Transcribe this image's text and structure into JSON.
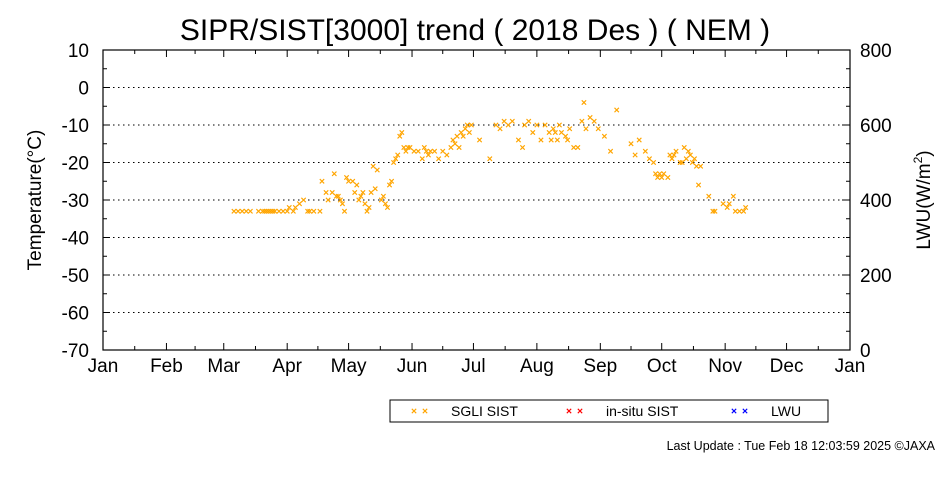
{
  "chart_data": {
    "type": "scatter",
    "title": "SIPR/SIST[3000] trend ( 2018 Des ) ( NEM )",
    "ylabel": "Temperature(°C)",
    "y2label": "LWU(W/m²)",
    "y2label_main": "LWU(W/m",
    "y2label_sup": "2",
    "y2label_end": ")",
    "xlabel": "",
    "x_ticks": [
      "Jan",
      "Feb",
      "Mar",
      "Apr",
      "May",
      "Jun",
      "Jul",
      "Aug",
      "Sep",
      "Oct",
      "Nov",
      "Dec",
      "Jan"
    ],
    "ylim": [
      -70,
      10
    ],
    "y_ticks": [
      "10",
      "0",
      "-10",
      "-20",
      "-30",
      "-40",
      "-50",
      "-60",
      "-70"
    ],
    "y2lim": [
      0,
      800
    ],
    "y2_ticks": [
      "800",
      "600",
      "400",
      "200",
      "0"
    ],
    "grid": "horizontal dotted",
    "legend_position": "bottom",
    "series": [
      {
        "name": "SGLI SIST",
        "color": "#FFA500",
        "points": [
          [
            64,
            -33
          ],
          [
            66,
            -33
          ],
          [
            68,
            -33
          ],
          [
            70,
            -33
          ],
          [
            72,
            -33
          ],
          [
            76,
            -33
          ],
          [
            78,
            -33
          ],
          [
            79,
            -33
          ],
          [
            80,
            -33
          ],
          [
            81,
            -33
          ],
          [
            82,
            -33
          ],
          [
            83,
            -33
          ],
          [
            84,
            -33
          ],
          [
            86,
            -33
          ],
          [
            88,
            -33
          ],
          [
            90,
            -33
          ],
          [
            91,
            -32
          ],
          [
            93,
            -33
          ],
          [
            94,
            -32
          ],
          [
            96,
            -31
          ],
          [
            98,
            -30
          ],
          [
            100,
            -33
          ],
          [
            101,
            -33
          ],
          [
            103,
            -33
          ],
          [
            106,
            -33
          ],
          [
            107,
            -25
          ],
          [
            109,
            -28
          ],
          [
            110,
            -30
          ],
          [
            112,
            -28
          ],
          [
            113,
            -23
          ],
          [
            114,
            -29
          ],
          [
            115,
            -29
          ],
          [
            116,
            -30
          ],
          [
            117,
            -31
          ],
          [
            118,
            -33
          ],
          [
            119,
            -24
          ],
          [
            120,
            -25
          ],
          [
            122,
            -25
          ],
          [
            123,
            -28
          ],
          [
            124,
            -26
          ],
          [
            125,
            -30
          ],
          [
            126,
            -29
          ],
          [
            127,
            -28
          ],
          [
            128,
            -31
          ],
          [
            129,
            -33
          ],
          [
            130,
            -32
          ],
          [
            131,
            -28
          ],
          [
            132,
            -21
          ],
          [
            133,
            -27
          ],
          [
            134,
            -22
          ],
          [
            136,
            -30
          ],
          [
            137,
            -29
          ],
          [
            138,
            -31
          ],
          [
            139,
            -32
          ],
          [
            140,
            -26
          ],
          [
            141,
            -25
          ],
          [
            142,
            -20
          ],
          [
            143,
            -19
          ],
          [
            144,
            -18
          ],
          [
            145,
            -13
          ],
          [
            146,
            -12
          ],
          [
            147,
            -16
          ],
          [
            148,
            -17
          ],
          [
            149,
            -16
          ],
          [
            150,
            -16
          ],
          [
            152,
            -17
          ],
          [
            154,
            -17
          ],
          [
            156,
            -19
          ],
          [
            157,
            -16
          ],
          [
            158,
            -17
          ],
          [
            159,
            -18
          ],
          [
            160,
            -17
          ],
          [
            162,
            -17
          ],
          [
            164,
            -19
          ],
          [
            166,
            -17
          ],
          [
            168,
            -18
          ],
          [
            170,
            -16
          ],
          [
            171,
            -14
          ],
          [
            172,
            -15
          ],
          [
            173,
            -13
          ],
          [
            174,
            -16
          ],
          [
            175,
            -12
          ],
          [
            176,
            -13
          ],
          [
            177,
            -11
          ],
          [
            178,
            -10
          ],
          [
            179,
            -12
          ],
          [
            180,
            -10
          ],
          [
            184,
            -14
          ],
          [
            189,
            -19
          ],
          [
            192,
            -10
          ],
          [
            194,
            -11
          ],
          [
            196,
            -9
          ],
          [
            198,
            -10
          ],
          [
            200,
            -9
          ],
          [
            203,
            -14
          ],
          [
            205,
            -16
          ],
          [
            206,
            -10
          ],
          [
            208,
            -9
          ],
          [
            210,
            -12
          ],
          [
            212,
            -10
          ],
          [
            214,
            -14
          ],
          [
            216,
            -10
          ],
          [
            218,
            -12
          ],
          [
            219,
            -14
          ],
          [
            220,
            -11
          ],
          [
            221,
            -12
          ],
          [
            222,
            -14
          ],
          [
            223,
            -10
          ],
          [
            224,
            -12
          ],
          [
            226,
            -13
          ],
          [
            227,
            -14
          ],
          [
            228,
            -11
          ],
          [
            230,
            -16
          ],
          [
            232,
            -16
          ],
          [
            234,
            -9
          ],
          [
            235,
            -4
          ],
          [
            236,
            -11
          ],
          [
            238,
            -8
          ],
          [
            240,
            -9
          ],
          [
            242,
            -11
          ],
          [
            245,
            -13
          ],
          [
            248,
            -17
          ],
          [
            251,
            -6
          ],
          [
            258,
            -15
          ],
          [
            260,
            -18
          ],
          [
            262,
            -14
          ],
          [
            265,
            -17
          ],
          [
            267,
            -19
          ],
          [
            269,
            -20
          ],
          [
            270,
            -23
          ],
          [
            271,
            -24
          ],
          [
            272,
            -23
          ],
          [
            273,
            -24
          ],
          [
            274,
            -23
          ],
          [
            276,
            -24
          ],
          [
            277,
            -18
          ],
          [
            278,
            -19
          ],
          [
            279,
            -18
          ],
          [
            280,
            -17
          ],
          [
            282,
            -20
          ],
          [
            283,
            -20
          ],
          [
            284,
            -16
          ],
          [
            285,
            -19
          ],
          [
            286,
            -17
          ],
          [
            287,
            -18
          ],
          [
            288,
            -20
          ],
          [
            289,
            -19
          ],
          [
            290,
            -21
          ],
          [
            291,
            -26
          ],
          [
            292,
            -21
          ],
          [
            296,
            -29
          ],
          [
            298,
            -33
          ],
          [
            299,
            -33
          ],
          [
            303,
            -31
          ],
          [
            305,
            -32
          ],
          [
            306,
            -31
          ],
          [
            308,
            -29
          ],
          [
            309,
            -33
          ],
          [
            311,
            -33
          ],
          [
            313,
            -33
          ],
          [
            314,
            -32
          ]
        ]
      },
      {
        "name": "in-situ SIST",
        "color": "#FF0000",
        "points": []
      },
      {
        "name": "LWU",
        "color": "#0000FF",
        "points": []
      }
    ]
  },
  "footer": {
    "last_update": "Last Update : Tue Feb 18 12:03:59 2025  ©JAXA"
  }
}
